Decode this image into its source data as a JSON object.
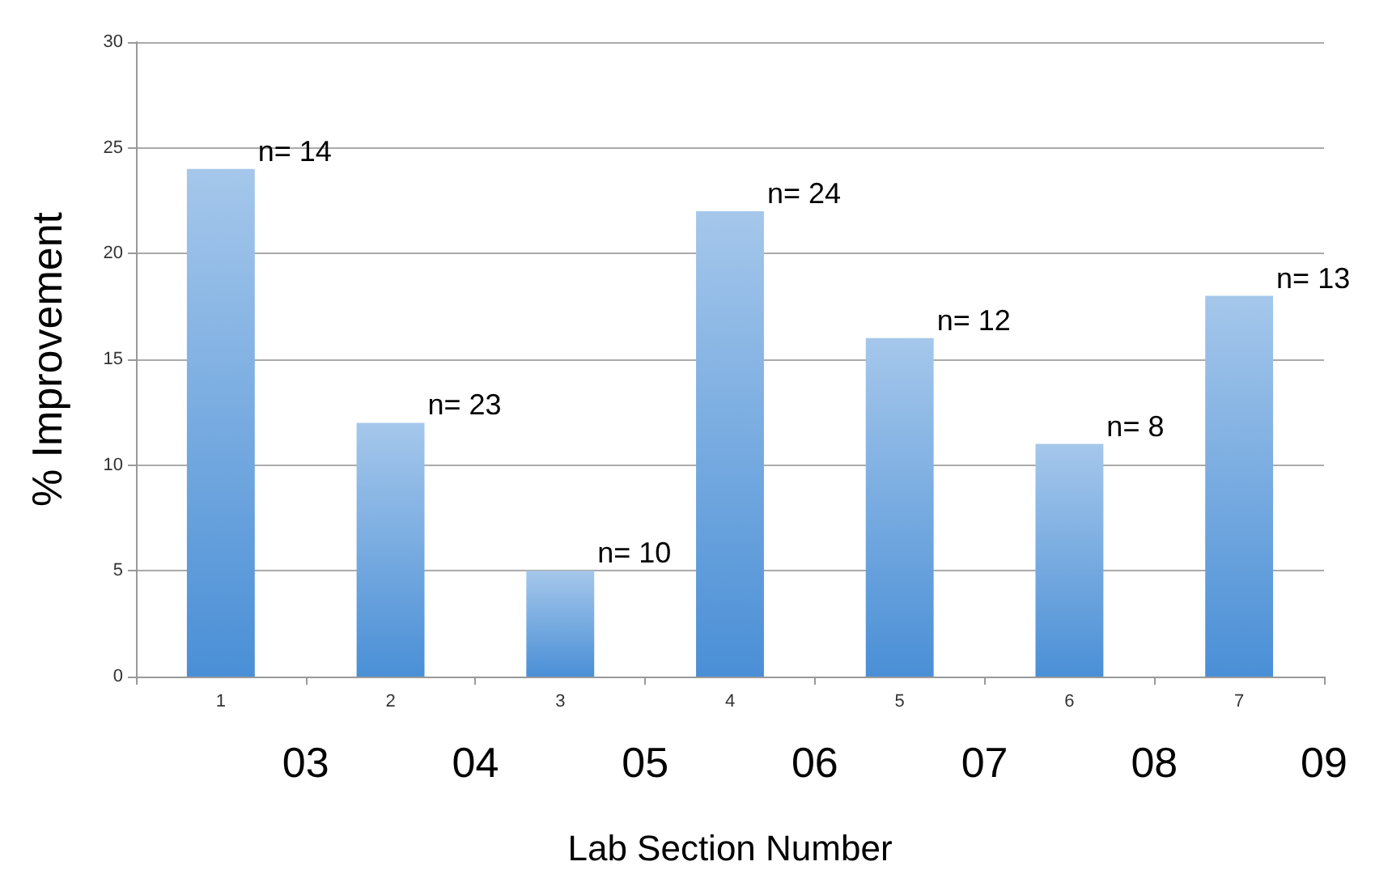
{
  "chart_data": {
    "type": "bar",
    "xlabel": "Lab Section Number",
    "ylabel": "% Improvement",
    "categories": [
      "1",
      "2",
      "3",
      "4",
      "5",
      "6",
      "7"
    ],
    "values": [
      24,
      12,
      5,
      22,
      16,
      11,
      18
    ],
    "color": "#4a8fd6",
    "ylim": [
      0,
      30
    ],
    "yticks": [
      0,
      5,
      10,
      15,
      20,
      25,
      30
    ],
    "grid": "y",
    "annotations": [
      {
        "text": "n= 14",
        "x": "1",
        "y": 24
      },
      {
        "text": "n= 23",
        "x": "2",
        "y": 12
      },
      {
        "text": "n= 10",
        "x": "3",
        "y": 5
      },
      {
        "text": "n= 24",
        "x": "4",
        "y": 22
      },
      {
        "text": "n= 12",
        "x": "5",
        "y": 16
      },
      {
        "text": "n= 8",
        "x": "6",
        "y": 11
      },
      {
        "text": "n= 13",
        "x": "7",
        "y": 18
      },
      "03",
      "04",
      "05",
      "06",
      "07",
      "08",
      "09"
    ]
  }
}
